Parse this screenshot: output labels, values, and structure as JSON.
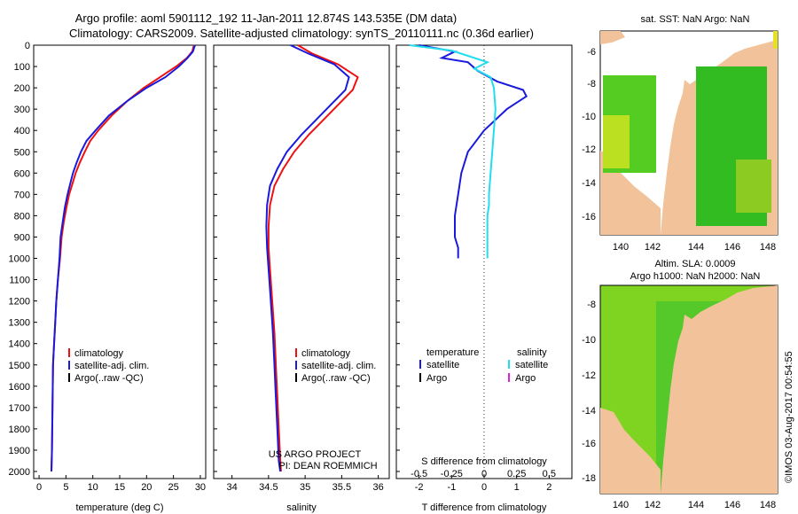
{
  "header": {
    "line1": "Argo profile: aoml 5901112_192 11-Jan-2011 12.874S 143.535E (DM data)",
    "line2": "Climatology: CARS2009. Satellite-adjusted climatology: synTS_20110111.nc (0.36d earlier)"
  },
  "colors": {
    "climatology": "#ee1111",
    "satellite": "#1a1adb",
    "argo": "#000000",
    "sat_salinity": "#22ddee",
    "argo_salinity": "#dd22dd",
    "land": "#f2c39a",
    "ocean_green": "#33cc22"
  },
  "chart_data": [
    {
      "id": "temperature",
      "type": "line",
      "xlabel": "temperature (deg C)",
      "xlim": [
        -1,
        31
      ],
      "xticks": [
        0,
        5,
        10,
        15,
        20,
        25,
        30
      ],
      "ylim": [
        2000,
        0
      ],
      "yticks": [
        0,
        100,
        200,
        300,
        400,
        500,
        600,
        700,
        800,
        900,
        1000,
        1100,
        1200,
        1300,
        1400,
        1500,
        1600,
        1700,
        1800,
        1900,
        2000
      ],
      "legend": [
        "climatology",
        "satellite-adj. clim.",
        "Argo(..raw -QC)"
      ],
      "series": [
        {
          "name": "climatology",
          "color": "#ee1111",
          "x": [
            28.8,
            28.5,
            27.5,
            25.5,
            22.5,
            19.5,
            16.5,
            13.5,
            11.0,
            9.5,
            8.5,
            7.6,
            6.8,
            6.2,
            5.6,
            5.1,
            4.6,
            4.2,
            3.9,
            3.5,
            3.2,
            3.0,
            2.8,
            2.6,
            2.5,
            2.4,
            2.3
          ],
          "y": [
            0,
            30,
            60,
            100,
            150,
            200,
            260,
            330,
            400,
            450,
            500,
            550,
            600,
            650,
            700,
            760,
            830,
            900,
            1000,
            1100,
            1200,
            1300,
            1400,
            1500,
            1700,
            1900,
            2000
          ]
        },
        {
          "name": "satellite-adj. clim.",
          "color": "#1a1adb",
          "x": [
            29.0,
            28.6,
            27.6,
            26.0,
            23.5,
            20.0,
            16.5,
            13.0,
            10.5,
            8.8,
            7.8,
            7.0,
            6.3,
            5.8,
            5.3,
            4.8,
            4.4,
            4.0,
            3.8,
            3.5,
            3.2,
            3.0,
            2.8,
            2.6,
            2.5,
            2.4,
            2.3
          ],
          "y": [
            0,
            30,
            60,
            100,
            150,
            200,
            260,
            330,
            400,
            450,
            500,
            550,
            600,
            650,
            700,
            760,
            830,
            900,
            1000,
            1100,
            1200,
            1300,
            1400,
            1500,
            1700,
            1900,
            2000
          ]
        }
      ]
    },
    {
      "id": "salinity",
      "type": "line",
      "xlabel": "salinity",
      "xlim": [
        33.75,
        36.15
      ],
      "xticks": [
        34,
        34.5,
        35,
        35.5,
        36
      ],
      "ylim": [
        2000,
        0
      ],
      "legend": [
        "climatology",
        "satellite-adj. clim.",
        "Argo(..raw -QC)"
      ],
      "annotation": [
        "US ARGO PROJECT",
        "PI: DEAN ROEMMICH"
      ],
      "series": [
        {
          "name": "climatology",
          "color": "#ee1111",
          "x": [
            34.9,
            35.1,
            35.45,
            35.72,
            35.65,
            35.45,
            35.25,
            35.05,
            34.85,
            34.7,
            34.58,
            34.52,
            34.5,
            34.5,
            34.52,
            34.55,
            34.58,
            34.6,
            34.62,
            34.64,
            34.66,
            34.67
          ],
          "y": [
            0,
            40,
            90,
            150,
            210,
            280,
            350,
            420,
            500,
            580,
            660,
            750,
            850,
            950,
            1050,
            1200,
            1350,
            1500,
            1650,
            1800,
            1950,
            2000
          ]
        },
        {
          "name": "satellite-adj. clim.",
          "color": "#1a1adb",
          "x": [
            34.8,
            35.05,
            35.4,
            35.6,
            35.55,
            35.35,
            35.15,
            34.95,
            34.75,
            34.62,
            34.52,
            34.48,
            34.47,
            34.48,
            34.5,
            34.53,
            34.56,
            34.58,
            34.6,
            34.62,
            34.64,
            34.66
          ],
          "y": [
            0,
            40,
            90,
            150,
            210,
            280,
            350,
            420,
            500,
            580,
            660,
            750,
            850,
            950,
            1050,
            1200,
            1350,
            1500,
            1650,
            1800,
            1950,
            2000
          ]
        }
      ]
    },
    {
      "id": "difference",
      "type": "line",
      "xlabel": "T difference from climatology",
      "xlabel_top": "S difference from climatology",
      "xlim": [
        -2.7,
        2.7
      ],
      "xticks": [
        -2,
        -1,
        0,
        1,
        2
      ],
      "sticks": [
        -0.5,
        -0.25,
        0,
        0.25,
        0.5
      ],
      "sticks_text": [
        "-0.5",
        "-0.25",
        "0",
        "0.25",
        "0.5"
      ],
      "ylim": [
        2000,
        0
      ],
      "legend_headers": [
        "temperature",
        "salinity"
      ],
      "legend": [
        "satellite",
        "Argo",
        "satellite",
        "Argo"
      ],
      "series": [
        {
          "name": "satellite",
          "color": "#1a1adb",
          "x": [
            -2.0,
            -0.9,
            -1.3,
            -0.5,
            -0.2,
            0.4,
            1.2,
            1.3,
            0.7,
            0.0,
            -0.5,
            -0.7,
            -0.8,
            -0.9,
            -0.9,
            -0.9,
            -0.8,
            -0.8
          ],
          "y": [
            0,
            30,
            60,
            80,
            120,
            170,
            210,
            240,
            300,
            400,
            500,
            600,
            700,
            800,
            850,
            900,
            950,
            1000
          ]
        },
        {
          "name": "satellite",
          "color": "#22ddee",
          "x": [
            -2.3,
            -1.0,
            -0.5,
            0.1,
            -0.3,
            0.2,
            0.3,
            0.35,
            0.3,
            0.25,
            0.2,
            0.15,
            0.15,
            0.1,
            0.1,
            0.1,
            0.1,
            0.1
          ],
          "y": [
            0,
            25,
            50,
            80,
            110,
            150,
            200,
            300,
            400,
            500,
            600,
            700,
            750,
            800,
            850,
            900,
            950,
            1000
          ]
        }
      ]
    }
  ],
  "maps": {
    "sst": {
      "title": "sat. SST: NaN Argo: NaN",
      "xticks": [
        "140",
        "142",
        "144",
        "146",
        "148"
      ],
      "yticks": [
        "-6",
        "-8",
        "-10",
        "-12",
        "-14",
        "-16",
        "-18"
      ]
    },
    "sla": {
      "title1": "Altim. SLA: 0.0009",
      "title2": "Argo h1000: NaN h2000: NaN",
      "xticks": [
        "140",
        "142",
        "144",
        "146",
        "148"
      ],
      "yticks": [
        "-8",
        "-10",
        "-12",
        "-14",
        "-16",
        "-18"
      ]
    }
  },
  "footer": {
    "credit": "©IMOS 03-Aug-2017 00:54:55"
  }
}
